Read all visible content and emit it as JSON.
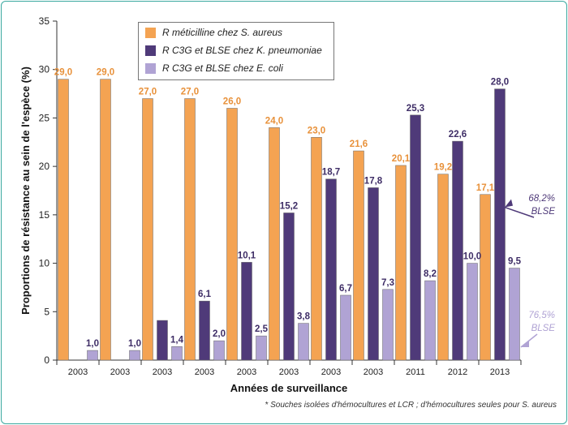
{
  "footnote": "* Souches isolées d'hémocultures et LCR ; d'hémocultures seules pour S. aureus",
  "chart_data": {
    "type": "bar",
    "xlabel": "Années de surveillance",
    "ylabel": "Proportions de résistance au sein de l'espèce (%)",
    "ylim": [
      0,
      35
    ],
    "yticks": [
      0,
      5,
      10,
      15,
      20,
      25,
      30,
      35
    ],
    "grid": false,
    "legend_position": "top",
    "categories": [
      "2003",
      "2003",
      "2003",
      "2003",
      "2003",
      "2003",
      "2003",
      "2003",
      "2011",
      "2012",
      "2013"
    ],
    "series": [
      {
        "name": "R méticilline chez S. aureus",
        "color": "#f4a352",
        "label_color": "#e8913a",
        "values": [
          29.0,
          29.0,
          27.0,
          27.0,
          26.0,
          24.0,
          23.0,
          21.6,
          20.1,
          19.2,
          17.1
        ],
        "labels": [
          "29,0",
          "29,0",
          "27,0",
          "27,0",
          "26,0",
          "24,0",
          "23,0",
          "21,6",
          "20,1",
          "19,2",
          "17,1"
        ]
      },
      {
        "name": "R C3G et BLSE chez K. pneumoniae",
        "color": "#4f3a79",
        "label_color": "#3e2d66",
        "values": [
          null,
          null,
          4.1,
          6.1,
          10.1,
          15.2,
          18.7,
          17.8,
          25.3,
          22.6,
          28.0
        ],
        "labels": [
          "",
          "",
          "",
          "6,1",
          "10,1",
          "15,2",
          "18,7",
          "17,8",
          "25,3",
          "22,6",
          "28,0"
        ]
      },
      {
        "name": "R C3G et BLSE chez E. coli",
        "color": "#b0a3d4",
        "label_color": "#3e2d66",
        "values": [
          1.0,
          1.0,
          1.4,
          2.0,
          2.5,
          3.8,
          6.7,
          7.3,
          8.2,
          10.0,
          9.5
        ],
        "labels": [
          "1,0",
          "1,0",
          "1,4",
          "2,0",
          "2,5",
          "3,8",
          "6,7",
          "7,3",
          "8,2",
          "10,0",
          "9,5"
        ]
      }
    ],
    "annotations": [
      {
        "text": "68,2%",
        "subtext": "BLSE",
        "color": "#4f3a79",
        "points_to_series": 1
      },
      {
        "text": "76,5%",
        "subtext": "BLSE",
        "color": "#b0a3d4",
        "points_to_series": 2
      }
    ]
  }
}
